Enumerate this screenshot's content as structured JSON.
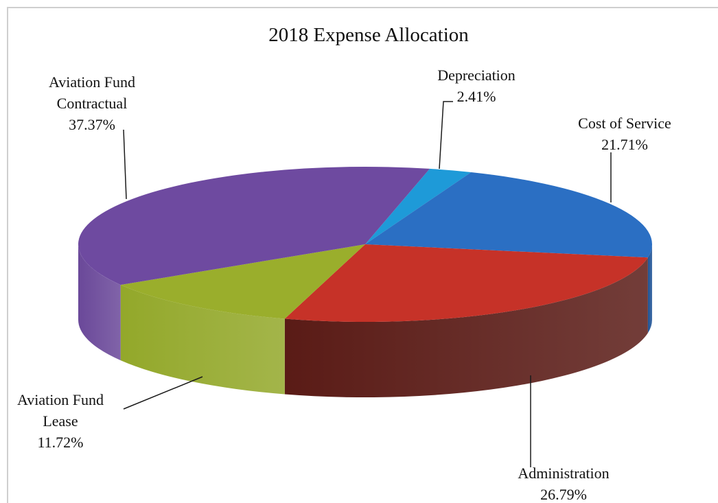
{
  "chart_data": {
    "type": "pie",
    "title": "2018 Expense Allocation",
    "three_d": true,
    "slices": [
      {
        "name": "Depreciation",
        "label_lines": [
          "Depreciation",
          "2.41%"
        ],
        "value": 2.41,
        "percent_label": "2.41%",
        "color": "#1e9ad8",
        "side_color": "#147ab0"
      },
      {
        "name": "Cost of Service",
        "label_lines": [
          "Cost of Service",
          "21.71%"
        ],
        "value": 21.71,
        "percent_label": "21.71%",
        "color": "#2b6fc3",
        "side_color": "#1f5396"
      },
      {
        "name": "Administration",
        "label_lines": [
          "Administration",
          "26.79%"
        ],
        "value": 26.79,
        "percent_label": "26.79%",
        "color": "#c63228",
        "side_color": "#5a1b16"
      },
      {
        "name": "Aviation Fund Lease",
        "label_lines": [
          "Aviation Fund",
          "Lease",
          "11.72%"
        ],
        "value": 11.72,
        "percent_label": "11.72%",
        "color": "#9aae2c",
        "side_color": "#93a82a"
      },
      {
        "name": "Aviation Fund Contractual",
        "label_lines": [
          "Aviation Fund",
          "Contractual",
          "37.37%"
        ],
        "value": 37.37,
        "percent_label": "37.37%",
        "color": "#6e4aa0",
        "side_color": "#6a4899"
      }
    ]
  }
}
